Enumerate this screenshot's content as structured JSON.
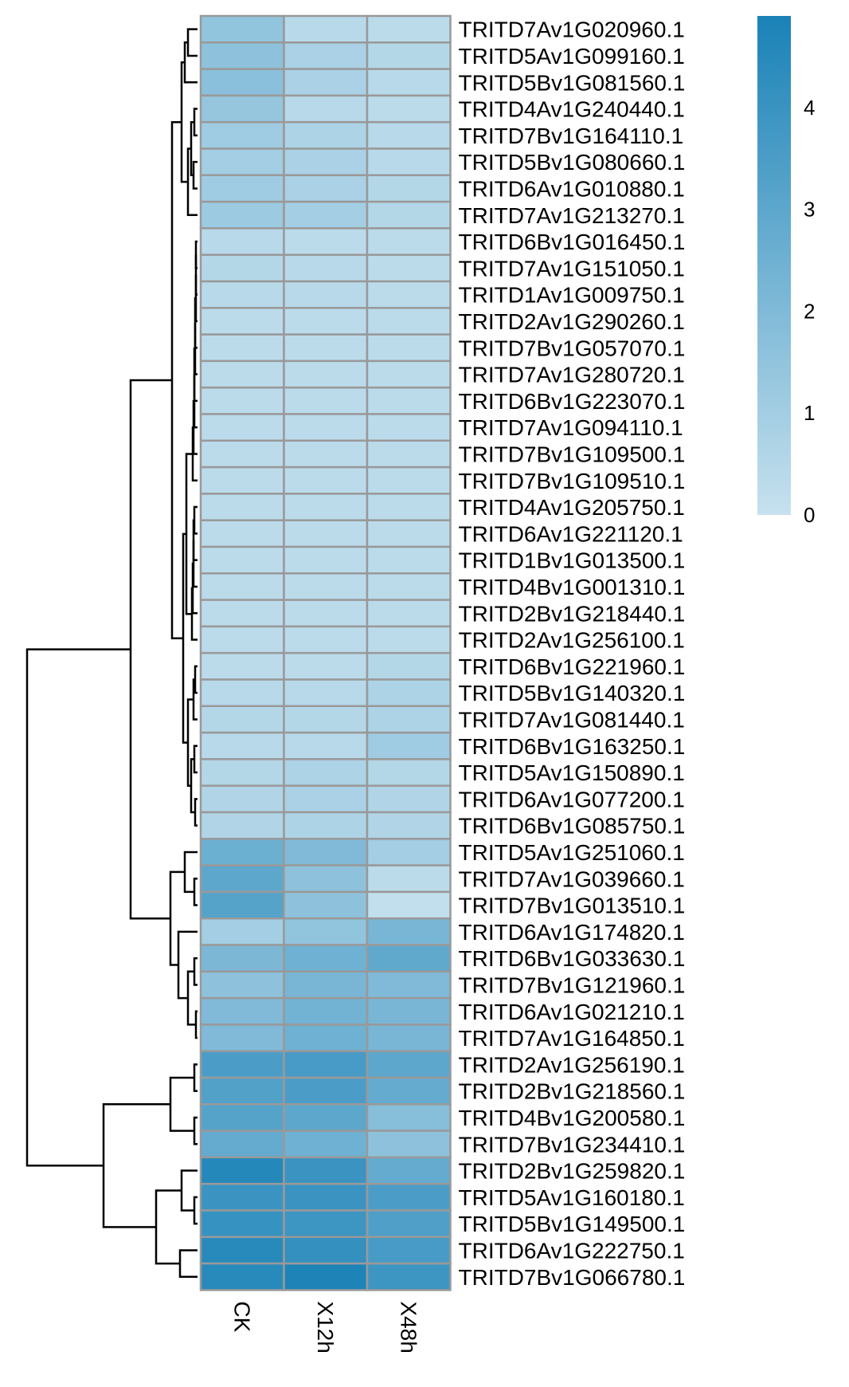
{
  "chart_data": {
    "type": "heatmap",
    "columns": [
      "CK",
      "X12h",
      "X48h"
    ],
    "rows": [
      "TRITD7Av1G020960.1",
      "TRITD5Av1G099160.1",
      "TRITD5Bv1G081560.1",
      "TRITD4Av1G240440.1",
      "TRITD7Bv1G164110.1",
      "TRITD5Bv1G080660.1",
      "TRITD6Av1G010880.1",
      "TRITD7Av1G213270.1",
      "TRITD6Bv1G016450.1",
      "TRITD7Av1G151050.1",
      "TRITD1Av1G009750.1",
      "TRITD2Av1G290260.1",
      "TRITD7Bv1G057070.1",
      "TRITD7Av1G280720.1",
      "TRITD6Bv1G223070.1",
      "TRITD7Av1G094110.1",
      "TRITD7Bv1G109500.1",
      "TRITD7Bv1G109510.1",
      "TRITD4Av1G205750.1",
      "TRITD6Av1G221120.1",
      "TRITD1Bv1G013500.1",
      "TRITD4Bv1G001310.1",
      "TRITD2Bv1G218440.1",
      "TRITD2Av1G256100.1",
      "TRITD6Bv1G221960.1",
      "TRITD5Bv1G140320.1",
      "TRITD7Av1G081440.1",
      "TRITD6Bv1G163250.1",
      "TRITD5Av1G150890.1",
      "TRITD6Av1G077200.1",
      "TRITD6Bv1G085750.1",
      "TRITD5Av1G251060.1",
      "TRITD7Av1G039660.1",
      "TRITD7Bv1G013510.1",
      "TRITD6Av1G174820.1",
      "TRITD6Bv1G033630.1",
      "TRITD7Bv1G121960.1",
      "TRITD6Av1G021210.1",
      "TRITD7Av1G164850.1",
      "TRITD2Av1G256190.1",
      "TRITD2Bv1G218560.1",
      "TRITD4Bv1G200580.1",
      "TRITD7Bv1G234410.1",
      "TRITD2Bv1G259820.1",
      "TRITD5Av1G160180.1",
      "TRITD5Bv1G149500.1",
      "TRITD6Av1G222750.1",
      "TRITD7Bv1G066780.1"
    ],
    "values": [
      [
        1.5,
        0.4,
        0.3
      ],
      [
        1.6,
        0.8,
        0.5
      ],
      [
        1.7,
        0.8,
        0.4
      ],
      [
        1.4,
        0.4,
        0.3
      ],
      [
        1.1,
        0.7,
        0.4
      ],
      [
        1.0,
        0.8,
        0.4
      ],
      [
        1.1,
        0.8,
        0.5
      ],
      [
        1.2,
        1.0,
        0.5
      ],
      [
        0.4,
        0.3,
        0.3
      ],
      [
        0.5,
        0.4,
        0.3
      ],
      [
        0.4,
        0.4,
        0.3
      ],
      [
        0.3,
        0.3,
        0.3
      ],
      [
        0.3,
        0.3,
        0.3
      ],
      [
        0.3,
        0.3,
        0.3
      ],
      [
        0.3,
        0.3,
        0.3
      ],
      [
        0.3,
        0.3,
        0.3
      ],
      [
        0.3,
        0.3,
        0.3
      ],
      [
        0.3,
        0.3,
        0.3
      ],
      [
        0.3,
        0.3,
        0.3
      ],
      [
        0.3,
        0.3,
        0.3
      ],
      [
        0.3,
        0.3,
        0.3
      ],
      [
        0.3,
        0.3,
        0.3
      ],
      [
        0.3,
        0.3,
        0.3
      ],
      [
        0.3,
        0.3,
        0.3
      ],
      [
        0.3,
        0.3,
        0.5
      ],
      [
        0.4,
        0.4,
        0.7
      ],
      [
        0.5,
        0.5,
        0.7
      ],
      [
        0.4,
        0.4,
        1.1
      ],
      [
        0.5,
        0.7,
        0.5
      ],
      [
        0.6,
        0.8,
        0.6
      ],
      [
        0.6,
        0.7,
        0.6
      ],
      [
        2.6,
        2.0,
        1.0
      ],
      [
        3.0,
        1.6,
        0.3
      ],
      [
        3.2,
        1.6,
        0.1
      ],
      [
        1.0,
        1.5,
        2.2
      ],
      [
        2.1,
        2.5,
        2.9
      ],
      [
        1.6,
        2.2,
        2.0
      ],
      [
        2.0,
        2.4,
        2.2
      ],
      [
        2.0,
        2.5,
        2.2
      ],
      [
        3.5,
        3.6,
        3.0
      ],
      [
        3.3,
        3.5,
        2.8
      ],
      [
        3.2,
        3.0,
        1.8
      ],
      [
        2.8,
        2.5,
        1.6
      ],
      [
        4.6,
        4.0,
        2.8
      ],
      [
        4.0,
        4.0,
        3.5
      ],
      [
        4.1,
        3.9,
        3.4
      ],
      [
        4.5,
        4.2,
        3.6
      ],
      [
        4.5,
        4.8,
        3.9
      ]
    ],
    "color_scale": {
      "low": "#c6e1ee",
      "high": "#1a82b7",
      "min": 0,
      "max": 4.9
    },
    "legend_ticks": [
      0,
      1,
      2,
      3,
      4
    ],
    "legend_placement": "top-right",
    "dendrogram": "rows",
    "cell_border_color": "#999999"
  }
}
